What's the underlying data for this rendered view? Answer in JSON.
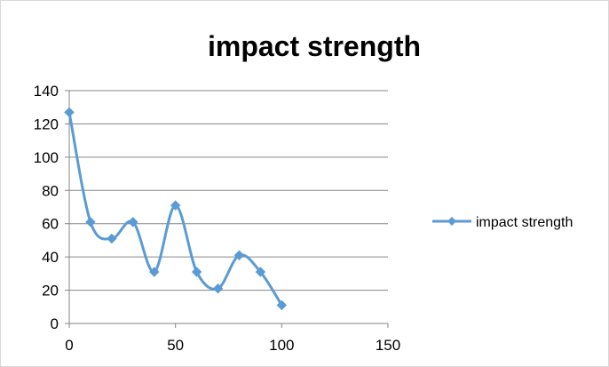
{
  "chart_data": {
    "type": "line",
    "title": "impact strength",
    "xlabel": "",
    "ylabel": "",
    "xlim": [
      0,
      150
    ],
    "ylim": [
      0,
      140
    ],
    "x_ticks": [
      0,
      50,
      100,
      150
    ],
    "y_ticks": [
      0,
      20,
      40,
      60,
      80,
      100,
      120,
      140
    ],
    "grid": "horizontal",
    "smooth": true,
    "legend_position": "right",
    "series": [
      {
        "name": "impact strength",
        "color": "#5b9bd5",
        "marker": "diamond",
        "x": [
          0,
          10,
          20,
          30,
          40,
          50,
          60,
          70,
          80,
          90,
          100
        ],
        "y": [
          127,
          61,
          51,
          61,
          31,
          71,
          31,
          21,
          41,
          31,
          11
        ]
      }
    ]
  }
}
